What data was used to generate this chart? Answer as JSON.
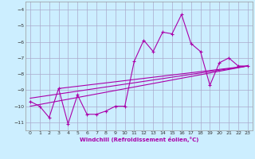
{
  "xlabel": "Windchill (Refroidissement éolien,°C)",
  "xlim": [
    -0.5,
    23.5
  ],
  "ylim": [
    -11.5,
    -3.5
  ],
  "yticks": [
    -11,
    -10,
    -9,
    -8,
    -7,
    -6,
    -5,
    -4
  ],
  "xticks": [
    0,
    1,
    2,
    3,
    4,
    5,
    6,
    7,
    8,
    9,
    10,
    11,
    12,
    13,
    14,
    15,
    16,
    17,
    18,
    19,
    20,
    21,
    22,
    23
  ],
  "bg_color": "#cceeff",
  "grid_color": "#aaaacc",
  "line_color": "#aa00aa",
  "line1_x": [
    0,
    1,
    2,
    3,
    4,
    5,
    6,
    7,
    8,
    9,
    10,
    11,
    12,
    13,
    14,
    15,
    16,
    17,
    18,
    19,
    20,
    21,
    22,
    23
  ],
  "line1_y": [
    -9.7,
    -10.0,
    -10.7,
    -8.9,
    -11.1,
    -9.3,
    -10.5,
    -10.5,
    -10.3,
    -10.0,
    -10.0,
    -7.2,
    -5.9,
    -6.6,
    -5.4,
    -5.5,
    -4.3,
    -6.1,
    -6.6,
    -8.7,
    -7.3,
    -7.0,
    -7.5,
    -7.5
  ],
  "line2_x": [
    0,
    23
  ],
  "line2_y": [
    -10.0,
    -7.5
  ],
  "line3_x": [
    0,
    23
  ],
  "line3_y": [
    -9.5,
    -7.5
  ],
  "line4_x": [
    3,
    23
  ],
  "line4_y": [
    -8.9,
    -7.5
  ]
}
